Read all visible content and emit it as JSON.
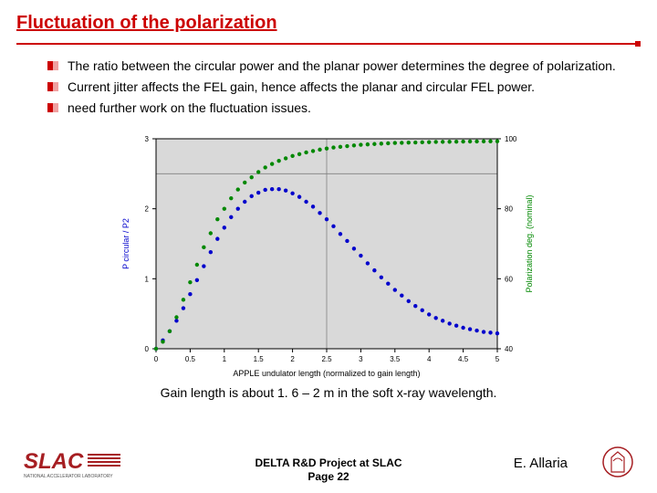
{
  "title": "Fluctuation of the polarization",
  "bullets": [
    "The ratio between the circular power and the planar power determines the degree of polarization.",
    "Current jitter affects the FEL gain, hence affects the planar and circular FEL power.",
    " need further work on the fluctuation issues."
  ],
  "chart": {
    "type": "scatter-line",
    "background": "#d9d9d9",
    "axis_box_color": "#000000",
    "grid_lines": {
      "x": 2.5,
      "y": 90,
      "color": "#808080"
    },
    "x": {
      "label": "APPLE undulator length (normalized to gain length)",
      "lim": [
        0,
        5
      ],
      "ticks": [
        0,
        0.5,
        1,
        1.5,
        2,
        2.5,
        3,
        3.5,
        4,
        4.5,
        5
      ],
      "tick_labels": [
        "0",
        "0.5",
        "1",
        "1.5",
        "2",
        "2.5",
        "3",
        "3.5",
        "4",
        "4.5",
        "5"
      ],
      "label_fontsize": 9,
      "tick_fontsize": 8
    },
    "y_left": {
      "label": "P circular / P2",
      "lim": [
        0,
        3
      ],
      "ticks": [
        0,
        1,
        2,
        3
      ],
      "tick_labels": [
        "0",
        "1",
        "2",
        "3"
      ],
      "color": "#0000cc",
      "label_fontsize": 9,
      "tick_fontsize": 8
    },
    "y_right": {
      "label": "Polarization deg. (nominal)",
      "lim": [
        40,
        100
      ],
      "ticks": [
        40,
        60,
        80,
        100
      ],
      "tick_labels": [
        "40",
        "60",
        "80",
        "100"
      ],
      "color": "#008800",
      "label_fontsize": 9,
      "tick_fontsize": 8
    },
    "series": [
      {
        "name": "Pcircular/P2",
        "axis": "left",
        "marker": "dot",
        "marker_size": 2.2,
        "color": "#0000cc",
        "x": [
          0,
          0.1,
          0.2,
          0.3,
          0.4,
          0.5,
          0.6,
          0.7,
          0.8,
          0.9,
          1.0,
          1.1,
          1.2,
          1.3,
          1.4,
          1.5,
          1.6,
          1.7,
          1.8,
          1.9,
          2.0,
          2.1,
          2.2,
          2.3,
          2.4,
          2.5,
          2.6,
          2.7,
          2.8,
          2.9,
          3.0,
          3.1,
          3.2,
          3.3,
          3.4,
          3.5,
          3.6,
          3.7,
          3.8,
          3.9,
          4.0,
          4.1,
          4.2,
          4.3,
          4.4,
          4.5,
          4.6,
          4.7,
          4.8,
          4.9,
          5.0
        ],
        "y": [
          0,
          0.12,
          0.25,
          0.4,
          0.58,
          0.78,
          0.98,
          1.18,
          1.38,
          1.57,
          1.73,
          1.88,
          2.0,
          2.1,
          2.18,
          2.23,
          2.27,
          2.28,
          2.28,
          2.26,
          2.22,
          2.17,
          2.1,
          2.03,
          1.94,
          1.85,
          1.75,
          1.64,
          1.54,
          1.43,
          1.33,
          1.22,
          1.12,
          1.02,
          0.93,
          0.84,
          0.76,
          0.68,
          0.61,
          0.55,
          0.49,
          0.44,
          0.4,
          0.36,
          0.33,
          0.3,
          0.28,
          0.26,
          0.24,
          0.23,
          0.22
        ]
      },
      {
        "name": "Polarization degree",
        "axis": "right",
        "marker": "dot",
        "marker_size": 2.2,
        "color": "#008800",
        "x": [
          0,
          0.1,
          0.2,
          0.3,
          0.4,
          0.5,
          0.6,
          0.7,
          0.8,
          0.9,
          1.0,
          1.1,
          1.2,
          1.3,
          1.4,
          1.5,
          1.6,
          1.7,
          1.8,
          1.9,
          2.0,
          2.1,
          2.2,
          2.3,
          2.4,
          2.5,
          2.6,
          2.7,
          2.8,
          2.9,
          3.0,
          3.1,
          3.2,
          3.3,
          3.4,
          3.5,
          3.6,
          3.7,
          3.8,
          3.9,
          4.0,
          4.1,
          4.2,
          4.3,
          4.4,
          4.5,
          4.6,
          4.7,
          4.8,
          4.9,
          5.0
        ],
        "y": [
          40,
          42,
          45,
          49,
          54,
          59,
          64,
          69,
          73,
          77,
          80,
          83,
          85.5,
          87.5,
          89,
          90.5,
          91.8,
          92.8,
          93.7,
          94.4,
          95.1,
          95.6,
          96.1,
          96.5,
          96.9,
          97.2,
          97.5,
          97.7,
          97.9,
          98.1,
          98.3,
          98.4,
          98.5,
          98.6,
          98.7,
          98.8,
          98.85,
          98.9,
          98.95,
          99.0,
          99.05,
          99.1,
          99.12,
          99.15,
          99.17,
          99.2,
          99.22,
          99.24,
          99.25,
          99.27,
          99.28
        ]
      }
    ]
  },
  "caption": "Gain length is about 1. 6 – 2 m in the soft x-ray wavelength.",
  "footer": {
    "center_line1": "DELTA R&D Project at SLAC",
    "center_line2": "Page 22",
    "credit": "E. Allaria",
    "slac_logo_text": "SLAC",
    "slac_sub": "NATIONAL ACCELERATOR LABORATORY",
    "slac_color": "#a61e22"
  }
}
